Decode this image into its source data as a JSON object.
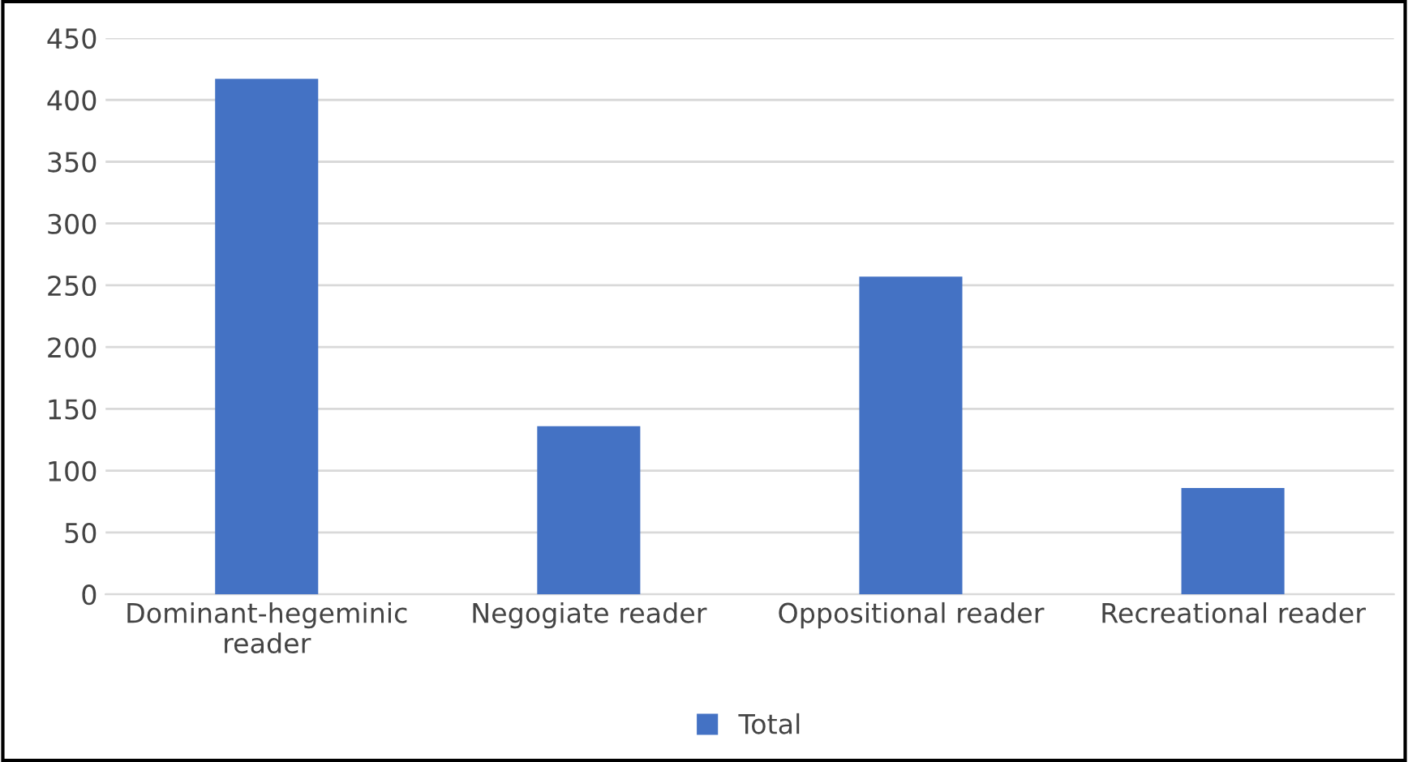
{
  "chart_data": {
    "type": "bar",
    "categories": [
      "Dominant-hegeminic\nreader",
      "Negogiate reader",
      "Oppositional reader",
      "Recreational reader"
    ],
    "series": [
      {
        "name": "Total",
        "color": "#4472c4",
        "values": [
          417,
          136,
          257,
          86
        ]
      }
    ],
    "ylim": [
      0,
      450
    ],
    "yticks": [
      0,
      50,
      100,
      150,
      200,
      250,
      300,
      350,
      400,
      450
    ],
    "grid": "y",
    "legend": "bottom"
  }
}
